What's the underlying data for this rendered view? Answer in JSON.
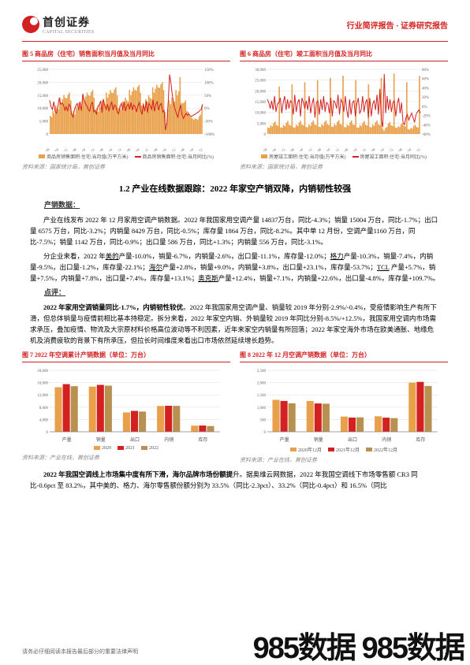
{
  "header": {
    "logo_zh": "首创证券",
    "logo_en": "CAPITAL SECURITIES",
    "right": "行业简评报告 · 证券研究报告"
  },
  "chart5": {
    "title": "图 5 商品房（住宅）销售面积当月值及当月同比",
    "legend": [
      "商品房销售面积:住宅:当月值(万平方米)",
      "商品房销售面积:住宅:当月同比(%)"
    ],
    "source": "资料来源：国家统计局，首创证券",
    "bar_color": "#e8a04a",
    "line_color": "#d32020",
    "y_left": {
      "min": 0,
      "max": 25000,
      "ticks": [
        "0",
        "5,000",
        "10,000",
        "15,000",
        "20,000",
        "25,000"
      ]
    },
    "y_right": {
      "min": -100,
      "max": 150,
      "ticks": [
        "-100%",
        "-50%",
        "0%",
        "50%",
        "100%",
        "150%"
      ]
    },
    "x_labels": [
      "2011-08",
      "2012-04",
      "2012-12",
      "2013-08",
      "2014-04",
      "2014-12",
      "2015-08",
      "2016-04",
      "2016-12",
      "2017-08",
      "2018-04",
      "2018-12",
      "2019-08",
      "2020-04",
      "2020-12",
      "2021-08",
      "2022-04",
      "2022-12"
    ],
    "bars": [
      7000,
      6500,
      9000,
      8000,
      11000,
      10000,
      9500,
      14000,
      12000,
      13500,
      15000,
      14000,
      13800,
      15200,
      16000,
      13000,
      8000,
      9000,
      7500,
      10500,
      9500,
      12000,
      11000,
      10500,
      15000,
      13000,
      14500,
      16000,
      15000,
      14800,
      16200,
      17000,
      14000,
      9000,
      10000,
      8500,
      11500,
      10500,
      13000,
      12000,
      11500,
      16000,
      14000,
      15500,
      17000,
      16000,
      15800,
      17200,
      18000,
      15000,
      10000,
      11000,
      9500,
      12500,
      11500,
      14000,
      13000,
      12500,
      17000,
      15000,
      16500,
      18000,
      17000,
      16800,
      18200,
      19000,
      16000,
      11000,
      12000,
      10500,
      13500,
      12500,
      15000,
      14000,
      13500,
      18000,
      16000,
      17500,
      19000,
      18000,
      17800,
      19200,
      20000,
      17000,
      8500,
      4000,
      9500,
      13000,
      11500,
      14000,
      13000,
      12500,
      17000,
      15000,
      16500,
      22000,
      12000,
      11800,
      12200,
      13000,
      9000,
      8500,
      7000,
      6500,
      6000,
      5500,
      6000,
      5800,
      5500,
      6800,
      7500,
      11000
    ],
    "line": [
      30,
      5,
      -5,
      25,
      -15,
      -20,
      8,
      40,
      15,
      20,
      12,
      -8,
      5,
      -12,
      15,
      8,
      -25,
      -35,
      -5,
      10,
      18,
      -8,
      25,
      -10,
      55,
      32,
      18,
      8,
      -5,
      -12,
      15,
      22,
      -15,
      -8,
      -25,
      8,
      12,
      28,
      -18,
      35,
      8,
      -5,
      15,
      -12,
      8,
      25,
      -8,
      12,
      8,
      -15,
      -22,
      5,
      18,
      -8,
      25,
      -12,
      8,
      15,
      -5,
      22,
      -8,
      12,
      5,
      -15,
      8,
      22,
      -8,
      -25,
      15,
      -12,
      28,
      -18,
      18,
      8,
      -5,
      32,
      -12,
      15,
      25,
      -8,
      12,
      18,
      -15,
      -8,
      -85,
      -60,
      25,
      130,
      95,
      50,
      15,
      -5,
      -22,
      -35,
      -8,
      12,
      -25,
      -40,
      -30,
      -20,
      -28,
      -22,
      -30,
      -32,
      -28,
      -25,
      -22,
      -18,
      -15,
      -8,
      -5,
      15
    ]
  },
  "chart6": {
    "title": "图 6 商品房（住宅）竣工面积当月值及当月同比",
    "legend": [
      "房屋竣工面积:住宅:当月值(万平方米)",
      "房屋竣工面积:住宅:当月同比(%)"
    ],
    "source": "资料来源：国家统计局，首创证券",
    "bar_color": "#e8a04a",
    "line_color": "#d32020",
    "y_left": {
      "min": 0,
      "max": 30000,
      "ticks": [
        "0",
        "5,000",
        "10,000",
        "15,000",
        "20,000",
        "25,000",
        "30,000"
      ]
    },
    "y_right": {
      "min": -60,
      "max": 80,
      "ticks": [
        "-60%",
        "-40%",
        "-20%",
        "0%",
        "20%",
        "40%",
        "60%",
        "80%"
      ]
    },
    "x_labels": [
      "2011-08",
      "2012-04",
      "2012-12",
      "2013-08",
      "2014-04",
      "2014-12",
      "2015-08",
      "2016-04",
      "2016-12",
      "2017-08",
      "2018-04",
      "2018-12",
      "2019-08",
      "2020-04",
      "2020-12",
      "2021-08",
      "2022-04",
      "2022-12"
    ],
    "bars": [
      3000,
      2800,
      4000,
      3500,
      5000,
      5800,
      4200,
      3800,
      22000,
      3000,
      2900,
      4200,
      3600,
      5200,
      6000,
      4300,
      3900,
      23000,
      3100,
      3000,
      4300,
      3700,
      5300,
      6100,
      4400,
      4000,
      24000,
      3200,
      3100,
      4400,
      3800,
      5400,
      6200,
      4500,
      4100,
      25000,
      3300,
      3200,
      4500,
      3900,
      5500,
      6300,
      4600,
      4200,
      26000,
      3400,
      3300,
      4600,
      4000,
      5600,
      6400,
      4700,
      4300,
      27000,
      3200,
      3100,
      4400,
      3800,
      5400,
      6200,
      4500,
      4100,
      25000,
      3000,
      2900,
      4200,
      3600,
      5200,
      6000,
      4300,
      3900,
      23000,
      3200,
      3100,
      4400,
      3800,
      5400,
      6200,
      4500,
      4100,
      26000,
      2500,
      1500,
      2800,
      3200,
      4800,
      5500,
      4000,
      3700,
      28000,
      3000,
      2800,
      3500,
      3200,
      4500,
      5000,
      3800,
      3500,
      24000,
      2200,
      2000,
      2800,
      2500,
      3800,
      4200,
      3200,
      3000,
      27000
    ],
    "line": [
      15,
      8,
      -5,
      12,
      -8,
      22,
      -12,
      5,
      8,
      18,
      -15,
      8,
      22,
      -8,
      15,
      -5,
      12,
      8,
      -18,
      25,
      -12,
      8,
      15,
      -22,
      18,
      8,
      -5,
      12,
      -8,
      22,
      -15,
      5,
      18,
      -25,
      8,
      12,
      -18,
      15,
      -8,
      22,
      -12,
      8,
      5,
      -15,
      18,
      -22,
      12,
      8,
      -5,
      25,
      -18,
      15,
      8,
      -12,
      22,
      -8,
      -25,
      15,
      -18,
      8,
      12,
      -22,
      5,
      18,
      -15,
      -8,
      22,
      -12,
      8,
      15,
      -25,
      18,
      -22,
      5,
      12,
      -8,
      25,
      -18,
      38,
      -30,
      -45,
      70,
      -15,
      22,
      -8,
      15,
      -12,
      8,
      12,
      -22,
      5,
      18,
      -15,
      8,
      -35,
      -40,
      -25,
      -18,
      -30,
      -22,
      -15,
      -25,
      -35,
      -18,
      -12,
      -8,
      -15
    ]
  },
  "section_heading": "1.2 产业在线数据跟踪：2022 年家空产销双降，内销韧性较强",
  "subhead1": "产销数据：",
  "para1": "产业在线发布 2022 年 12 月家用空调产销数据。2022 年我国家用空调产量 14837万台，同比-4.3%；销量 15004 万台，同比-1.7%；出口量 6575 万台，同比-3.2%；内销量 8429 万台，同比-0.5%；库存量 1864 万台，同比-8.2%。其中单 12 月份，空调产量1160 万台，同比-7.5%；销量 1142 万台，同比-0.9%；出口量 586 万台，同比+1.3%；内销量 556 万台，同比-3.1%。",
  "para2_prefix": "分企业来看，2022 年",
  "para2_mid1": "产量-10.0%，销量-6.7%，内销量-2.6%，出口量-11.1%，库存量-12.0%；",
  "para2_mid2": "产量-10.3%，销量-7.4%，内销量-9.5%，出口量-1.2%，库存量-22.1%；",
  "para2_mid3": "产量+2.8%，销量+9.0%，内销量+3.8%，出口量+23.1%，库存量-53.7%；",
  "para2_mid4": " 产量+5.7%，销量+7.5%，内销量+7.8%，出口量+7.4%，库存量+13.1%；",
  "para2_end": "产量+12.4%，销量+7.1%，内销量+22.6%，出口量-4.8%，库存量+109.7%。",
  "companies": {
    "meidi": "美的",
    "geli": "格力",
    "haier": "海尔",
    "tcl": "TCL",
    "aux": "奥克斯"
  },
  "subhead2": "点评：",
  "para3": "2022 年家用空调销量同比-1.7%，内销韧性较优。2022 年我国家用空调产量、销量较 2019 年分别-2.9%/-0.4%，受疫情影响生产有所下滑，但总体销量与疫情前相比基本持稳定。拆分来看，2022 年家空内销、外销量较 2019 年同比分别-8.5%/+12.5%，我国家用空调内市场需求承压，叠加疫情、物流及大宗原材料价格高位波动等不利因素，近年来家空内销量有所回落；2022 年家空海外市场在欧美通胀、地缘危机及消费疲软的背景下有所承压，但拉长时间维度来看出口市场依然延续增长趋势。",
  "chart7": {
    "title": "图 7 2022 年空调累计产销数据（单位：万台）",
    "legend": [
      "2020",
      "2021",
      "2022"
    ],
    "source": "资料来源：产业在线，首创证券",
    "colors": [
      "#e8a04a",
      "#d32020",
      "#b89050"
    ],
    "categories": [
      "产量",
      "销量",
      "出口",
      "内销",
      "库存"
    ],
    "y": {
      "min": 0,
      "max": 20000,
      "ticks": [
        "0",
        "4,000",
        "8,000",
        "12,000",
        "16,000",
        "20,000"
      ]
    },
    "series": [
      [
        14500,
        15506,
        14837
      ],
      [
        14700,
        15259,
        15004
      ],
      [
        6300,
        6792,
        6575
      ],
      [
        8400,
        8467,
        8429
      ],
      [
        2000,
        2030,
        1864
      ]
    ]
  },
  "chart8": {
    "title": "图 8 2022 年 12 月空调产销数据（单位：万台）",
    "legend": [
      "2020年12月",
      "2021年12月",
      "2022年12月"
    ],
    "source": "资料来源：产业在线，首创证券",
    "colors": [
      "#e8a04a",
      "#d32020",
      "#b89050"
    ],
    "categories": [
      "产量",
      "销量",
      "出口",
      "内销",
      "库存"
    ],
    "y": {
      "min": 0,
      "max": 2500,
      "ticks": [
        "0",
        "500",
        "1,000",
        "1,500",
        "2,000",
        "2,500"
      ]
    },
    "series": [
      [
        1300,
        1254,
        1160
      ],
      [
        1250,
        1152,
        1142
      ],
      [
        620,
        578,
        586
      ],
      [
        630,
        574,
        556
      ],
      [
        2000,
        2030,
        1864
      ]
    ]
  },
  "para4": "2022 年我国空调线上市场集中度有所下滑，海尔品牌市场份额提升。据奥维云网数据，2022 年我国空调线下市场零售额 CR3 同比-0.6pct 至 83.2%，其中美的、格力、海尔零售额份额分别为 33.5%（同比-2.3pct）、33.2%（同比-0.4pct）和 16.5%（同比",
  "footer": {
    "text": "请务必仔细阅读本报告最后部分的重要法律声明",
    "page": "2"
  },
  "watermark": "985数据  985数据"
}
